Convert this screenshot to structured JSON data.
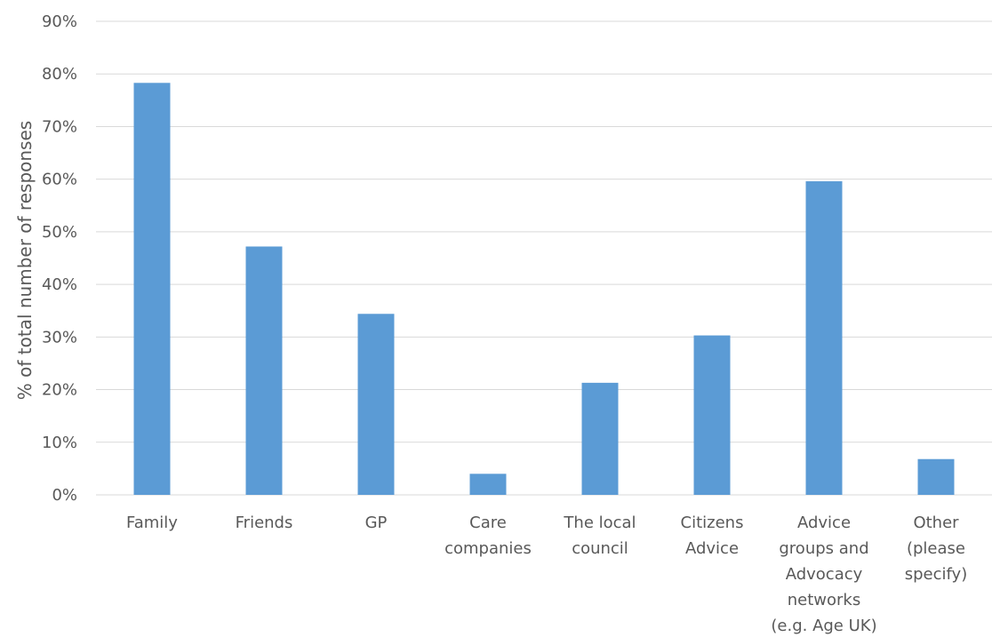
{
  "chart_data": {
    "type": "bar",
    "title": "",
    "xlabel": "",
    "ylabel": "% of total number of responses",
    "ylim": [
      0,
      90
    ],
    "yticks": [
      0,
      10,
      20,
      30,
      40,
      50,
      60,
      70,
      80,
      90
    ],
    "ytick_labels": [
      "0%",
      "10%",
      "20%",
      "30%",
      "40%",
      "50%",
      "60%",
      "70%",
      "80%",
      "90%"
    ],
    "grid": true,
    "legend": "none",
    "bar_color": "#5b9bd5",
    "categories": [
      "Family",
      "Friends",
      "GP",
      "Care companies",
      "The local council",
      "Citizens Advice",
      "Advice groups and Advocacy networks (e.g. Age UK)",
      "Other (please specify)"
    ],
    "category_lines": [
      [
        "Family"
      ],
      [
        "Friends"
      ],
      [
        "GP"
      ],
      [
        "Care",
        "companies"
      ],
      [
        "The local",
        "council"
      ],
      [
        "Citizens",
        "Advice"
      ],
      [
        "Advice",
        "groups and",
        "Advocacy",
        "networks",
        "(e.g. Age UK)"
      ],
      [
        "Other",
        "(please",
        "specify)"
      ]
    ],
    "values": [
      78.3,
      47.2,
      34.4,
      4.0,
      21.3,
      30.3,
      59.6,
      6.8
    ]
  }
}
